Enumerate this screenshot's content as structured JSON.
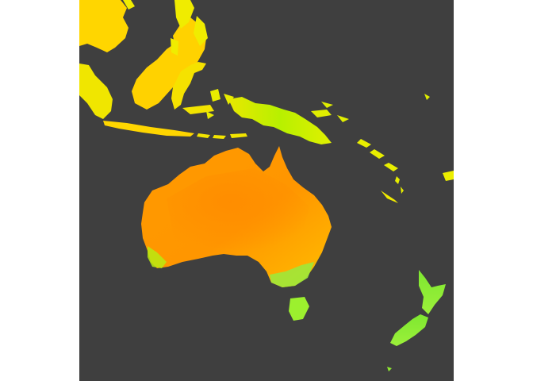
{
  "map": {
    "ocean_color": "#3f3f3f",
    "background_color": "#ffffff",
    "palette": {
      "hot": "#ff9800",
      "warm": "#ffb300",
      "mild": "#ffd600",
      "cool_yellow": "#e6f000",
      "green": "#8ef02a",
      "green_light": "#a6f23a"
    },
    "regions": [
      "australia",
      "tasmania",
      "new-zealand-north-island",
      "new-zealand-south-island",
      "new-guinea",
      "borneo",
      "sumatra",
      "java",
      "sulawesi",
      "lesser-sunda-islands",
      "philippines",
      "solomon-islands",
      "vanuatu",
      "new-caledonia",
      "fiji"
    ]
  }
}
